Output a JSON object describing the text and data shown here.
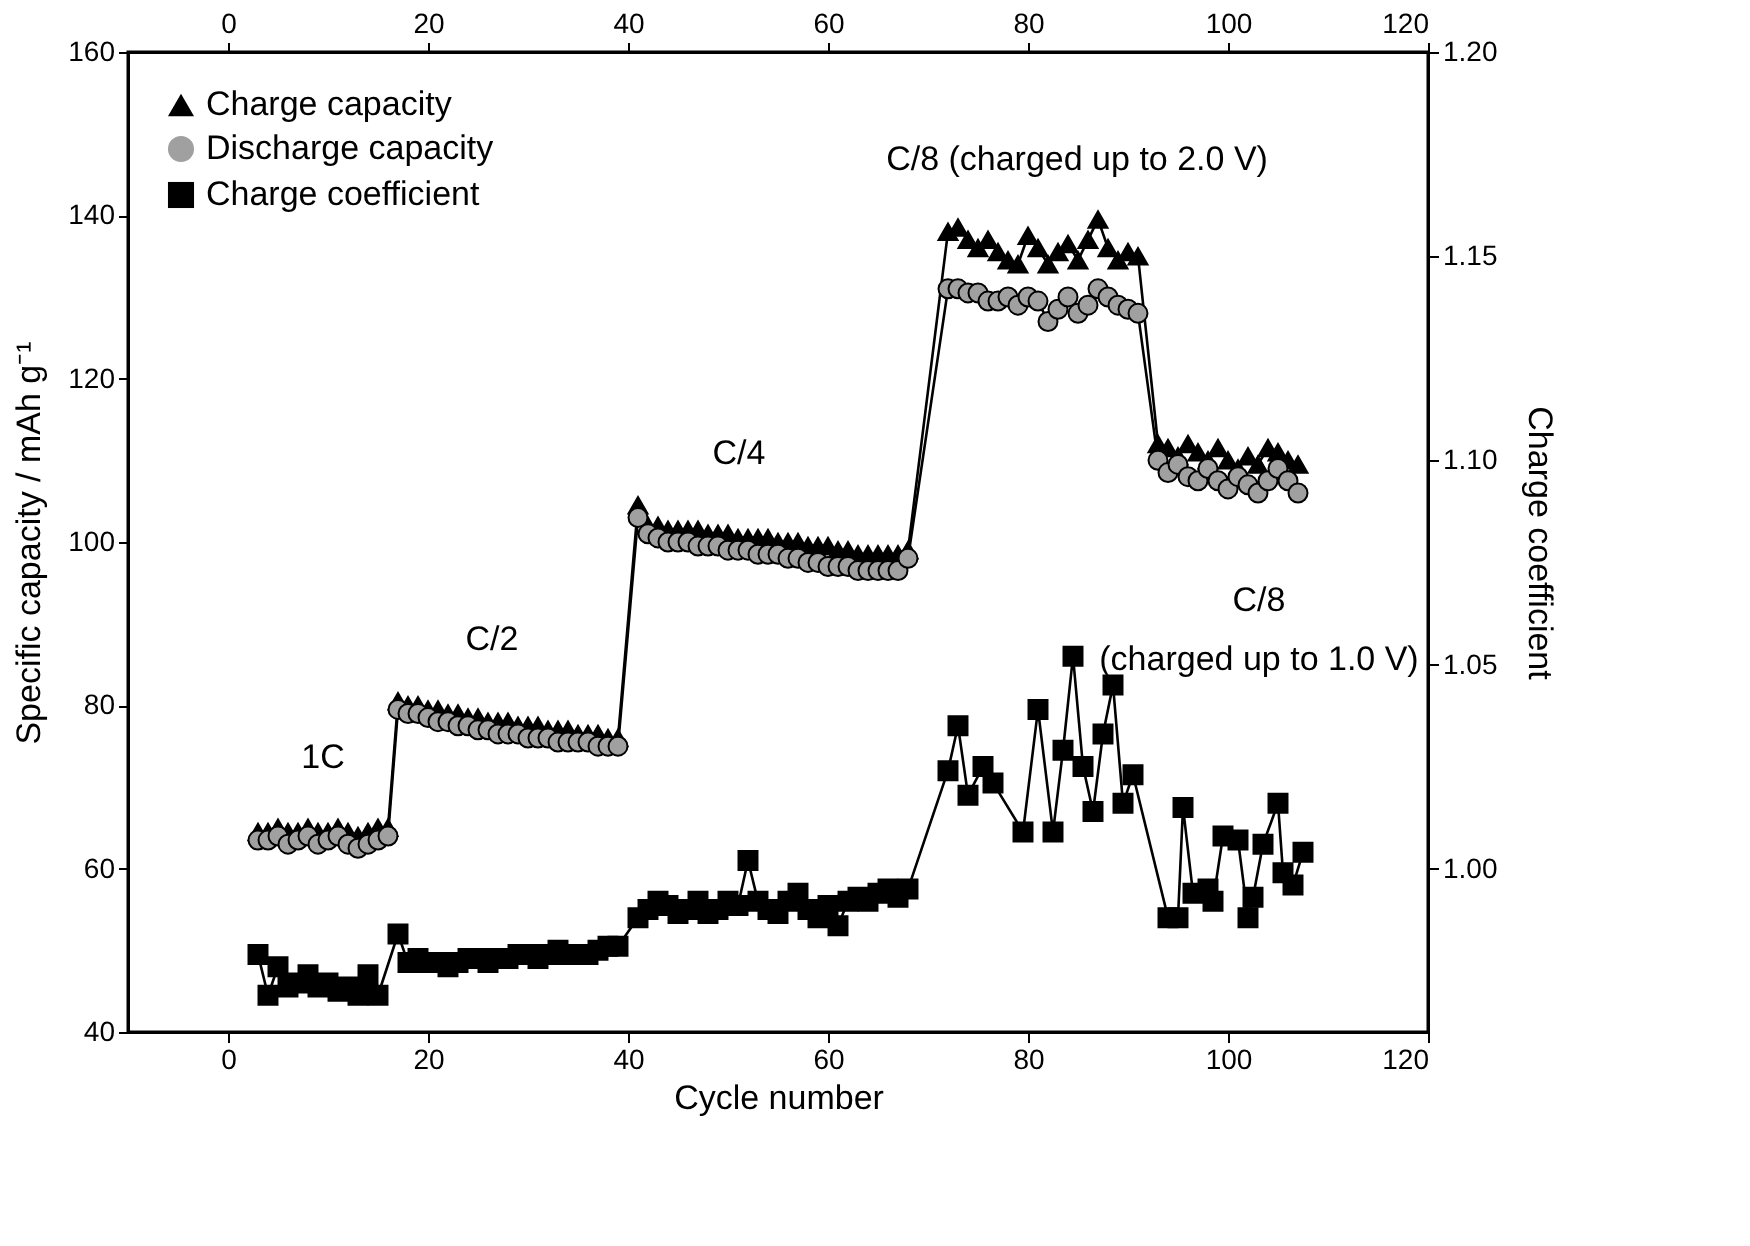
{
  "chart_data": {
    "type": "line",
    "xlabel": "Cycle number",
    "ylabel": "Specific capacity / mAh g⁻¹",
    "y2label": "Charge coefficient",
    "xlim": [
      -10,
      120
    ],
    "xticks": [
      0,
      20,
      40,
      60,
      80,
      100,
      120
    ],
    "x2lim": [
      -10,
      120
    ],
    "x2ticks": [
      0,
      20,
      40,
      60,
      80,
      100,
      120
    ],
    "ylim": [
      40,
      160
    ],
    "yticks": [
      40,
      60,
      80,
      100,
      120,
      140,
      160
    ],
    "y2lim": [
      0.96,
      1.2
    ],
    "y2ticks": [
      {
        "value": 1.0,
        "label": "1.00"
      },
      {
        "value": 1.05,
        "label": "1.05"
      },
      {
        "value": 1.1,
        "label": "1.10"
      },
      {
        "value": 1.15,
        "label": "1.15"
      },
      {
        "value": 1.2,
        "label": "1.20"
      }
    ],
    "grid": false,
    "legend": "top left",
    "line_style": "solid",
    "annotations": [
      "1C",
      "C/2",
      "C/4",
      "C/8 (charged up to 2.0 V)",
      "C/8",
      "(charged up to 1.0 V)"
    ],
    "series": [
      {
        "name": "Charge capacity",
        "color": "#000000",
        "marker": "triangle",
        "x": [
          3,
          4,
          5,
          6,
          7,
          8,
          9,
          10,
          11,
          12,
          13,
          14,
          15,
          16,
          17,
          18,
          19,
          20,
          21,
          22,
          23,
          24,
          25,
          26,
          27,
          28,
          29,
          30,
          31,
          32,
          33,
          34,
          35,
          36,
          37,
          38,
          39,
          41,
          42,
          43,
          44,
          45,
          46,
          47,
          48,
          49,
          50,
          51,
          52,
          53,
          54,
          55,
          56,
          57,
          58,
          59,
          60,
          61,
          62,
          63,
          64,
          65,
          66,
          67,
          68,
          72,
          73,
          74,
          75,
          76,
          77,
          78,
          79,
          80,
          81,
          82,
          83,
          84,
          85,
          86,
          87,
          88,
          89,
          90,
          91,
          93,
          94,
          95,
          96,
          97,
          98,
          99,
          100,
          101,
          102,
          103,
          104,
          105,
          106,
          107
        ],
        "values": [
          64.5,
          64.5,
          65,
          64.5,
          64.5,
          65,
          64.5,
          64.5,
          65,
          64.5,
          64,
          64.5,
          65,
          65,
          80.5,
          80,
          80,
          79.5,
          79.5,
          79,
          79,
          78.5,
          78.5,
          78,
          78,
          78,
          77.5,
          77.5,
          77.5,
          77,
          77,
          77,
          76.5,
          76.5,
          76.5,
          76,
          76,
          104.5,
          102,
          102,
          101.5,
          101.5,
          101.5,
          101.5,
          101,
          101,
          101,
          100.5,
          100.5,
          100.5,
          100.5,
          100,
          100,
          100,
          99.5,
          99.5,
          99.5,
          99,
          99,
          98.5,
          98.5,
          98.5,
          98.5,
          98.5,
          99,
          138,
          138.5,
          137,
          136,
          137,
          135.5,
          134.5,
          134,
          137.5,
          136,
          134,
          135.5,
          136.5,
          134.5,
          137,
          139.5,
          136,
          134.5,
          135.5,
          135,
          112,
          111.5,
          110.5,
          112,
          111,
          110,
          111.5,
          110,
          109,
          110.5,
          109.5,
          111.5,
          111,
          110,
          109.5
        ]
      },
      {
        "name": "Discharge capacity",
        "color": "#a0a0a0",
        "marker": "circle",
        "x": [
          3,
          4,
          5,
          6,
          7,
          8,
          9,
          10,
          11,
          12,
          13,
          14,
          15,
          16,
          17,
          18,
          19,
          20,
          21,
          22,
          23,
          24,
          25,
          26,
          27,
          28,
          29,
          30,
          31,
          32,
          33,
          34,
          35,
          36,
          37,
          38,
          39,
          41,
          42,
          43,
          44,
          45,
          46,
          47,
          48,
          49,
          50,
          51,
          52,
          53,
          54,
          55,
          56,
          57,
          58,
          59,
          60,
          61,
          62,
          63,
          64,
          65,
          66,
          67,
          68,
          72,
          73,
          74,
          75,
          76,
          77,
          78,
          79,
          80,
          81,
          82,
          83,
          84,
          85,
          86,
          87,
          88,
          89,
          90,
          91,
          93,
          94,
          95,
          96,
          97,
          98,
          99,
          100,
          101,
          102,
          103,
          104,
          105,
          106,
          107
        ],
        "values": [
          63.5,
          63.5,
          64,
          63,
          63.5,
          64,
          63,
          63.5,
          64,
          63,
          62.5,
          63,
          63.5,
          64,
          79.5,
          79,
          79,
          78.5,
          78,
          78,
          77.5,
          77.5,
          77,
          77,
          76.5,
          76.5,
          76.5,
          76,
          76,
          76,
          75.5,
          75.5,
          75.5,
          75.5,
          75,
          75,
          75,
          103,
          101,
          100.5,
          100,
          100,
          100,
          99.5,
          99.5,
          99.5,
          99,
          99,
          99,
          98.5,
          98.5,
          98.5,
          98,
          98,
          97.5,
          97.5,
          97,
          97,
          97,
          96.5,
          96.5,
          96.5,
          96.5,
          96.5,
          98,
          131,
          131,
          130.5,
          130.5,
          129.5,
          129.5,
          130,
          129,
          130,
          129.5,
          127,
          128.5,
          130,
          128,
          129,
          131,
          130,
          129,
          128.5,
          128,
          110,
          108.5,
          109.5,
          108,
          107.5,
          109,
          107.5,
          106.5,
          108,
          107,
          106,
          107.5,
          109,
          107.5,
          106
        ]
      },
      {
        "name": "Charge coefficient",
        "color": "#000000",
        "marker": "square",
        "axis": "y2",
        "x": [
          3,
          4,
          5,
          6,
          7,
          8,
          9,
          10,
          11,
          12,
          13,
          14,
          15,
          17,
          18,
          19,
          20,
          21,
          22,
          23,
          24,
          25,
          26,
          27,
          28,
          29,
          30,
          31,
          32,
          33,
          34,
          35,
          36,
          37,
          38,
          39,
          41,
          42,
          43,
          44,
          45,
          46,
          47,
          48,
          49,
          50,
          51,
          52,
          53,
          54,
          55,
          56,
          57,
          58,
          59,
          60,
          61,
          62,
          63,
          64,
          65,
          66,
          67,
          68,
          72,
          73,
          74,
          75.5,
          76.5,
          79.5,
          81,
          82.5,
          83.5,
          84.5,
          85.5,
          86.5,
          87.5,
          88.5,
          89.5,
          90.5,
          94,
          95,
          95.5,
          96.5,
          98,
          98.5,
          99.5,
          101,
          102,
          102.5,
          103.5,
          105,
          105.5,
          106.5,
          107.5
        ],
        "values": [
          0.979,
          0.969,
          0.976,
          0.971,
          0.972,
          0.974,
          0.971,
          0.972,
          0.97,
          0.971,
          0.969,
          0.974,
          0.969,
          0.984,
          0.977,
          0.978,
          0.977,
          0.977,
          0.976,
          0.977,
          0.978,
          0.978,
          0.977,
          0.978,
          0.978,
          0.979,
          0.979,
          0.978,
          0.979,
          0.98,
          0.979,
          0.979,
          0.979,
          0.98,
          0.981,
          0.981,
          0.988,
          0.99,
          0.992,
          0.991,
          0.989,
          0.99,
          0.992,
          0.989,
          0.99,
          0.992,
          0.991,
          1.002,
          0.992,
          0.99,
          0.989,
          0.992,
          0.994,
          0.99,
          0.988,
          0.991,
          0.986,
          0.992,
          0.993,
          0.992,
          0.994,
          0.995,
          0.993,
          0.995,
          1.024,
          1.035,
          1.018,
          1.025,
          1.021,
          1.009,
          1.039,
          1.009,
          1.029,
          1.052,
          1.025,
          1.014,
          1.033,
          1.045,
          1.016,
          1.023,
          0.988,
          0.988,
          1.015,
          0.994,
          0.995,
          0.992,
          1.008,
          1.007,
          0.988,
          0.993,
          1.006,
          1.016,
          0.999,
          0.996,
          1.004
        ]
      }
    ]
  }
}
